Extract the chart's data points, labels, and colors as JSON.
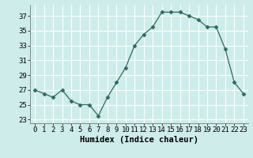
{
  "x": [
    0,
    1,
    2,
    3,
    4,
    5,
    6,
    7,
    8,
    9,
    10,
    11,
    12,
    13,
    14,
    15,
    16,
    17,
    18,
    19,
    20,
    21,
    22,
    23
  ],
  "y": [
    27,
    26.5,
    26,
    27,
    25.5,
    25,
    25,
    23.5,
    26,
    28,
    30,
    33,
    34.5,
    35.5,
    37.5,
    37.5,
    37.5,
    37,
    36.5,
    35.5,
    35.5,
    32.5,
    28,
    26.5
  ],
  "xlabel": "Humidex (Indice chaleur)",
  "xlim": [
    -0.5,
    23.5
  ],
  "ylim": [
    22.5,
    38.5
  ],
  "yticks": [
    23,
    25,
    27,
    29,
    31,
    33,
    35,
    37
  ],
  "xticks": [
    0,
    1,
    2,
    3,
    4,
    5,
    6,
    7,
    8,
    9,
    10,
    11,
    12,
    13,
    14,
    15,
    16,
    17,
    18,
    19,
    20,
    21,
    22,
    23
  ],
  "line_color": "#2e6b5e",
  "marker": "D",
  "marker_size": 2.5,
  "bg_color": "#cdecea",
  "grid_color": "#ffffff",
  "label_fontsize": 7.5,
  "tick_fontsize": 6.5,
  "font_family": "monospace"
}
